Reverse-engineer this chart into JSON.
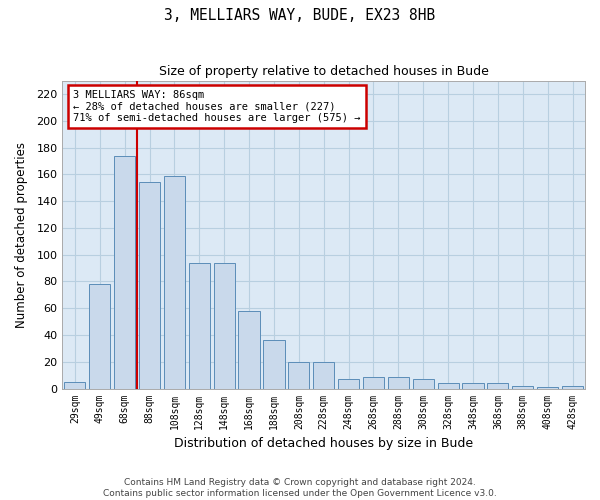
{
  "title": "3, MELLIARS WAY, BUDE, EX23 8HB",
  "subtitle": "Size of property relative to detached houses in Bude",
  "xlabel": "Distribution of detached houses by size in Bude",
  "ylabel": "Number of detached properties",
  "footer_line1": "Contains HM Land Registry data © Crown copyright and database right 2024.",
  "footer_line2": "Contains public sector information licensed under the Open Government Licence v3.0.",
  "bar_color": "#c9d9eb",
  "bar_edge_color": "#5b8db8",
  "grid_color": "#b8cfe0",
  "bg_color": "#dce9f5",
  "annotation_box_color": "#cc0000",
  "vline_color": "#cc0000",
  "categories": [
    "29sqm",
    "49sqm",
    "68sqm",
    "88sqm",
    "108sqm",
    "128sqm",
    "148sqm",
    "168sqm",
    "188sqm",
    "208sqm",
    "228sqm",
    "248sqm",
    "268sqm",
    "288sqm",
    "308sqm",
    "328sqm",
    "348sqm",
    "368sqm",
    "388sqm",
    "408sqm",
    "428sqm"
  ],
  "values": [
    5,
    78,
    174,
    154,
    159,
    94,
    94,
    58,
    36,
    20,
    20,
    7,
    9,
    9,
    7,
    4,
    4,
    4,
    2,
    1,
    2
  ],
  "property_label": "3 MELLIARS WAY: 86sqm",
  "pct_smaller": "28% of detached houses are smaller (227)",
  "pct_larger": "71% of semi-detached houses are larger (575)",
  "vline_position": 2.5,
  "ylim": [
    0,
    230
  ],
  "yticks": [
    0,
    20,
    40,
    60,
    80,
    100,
    120,
    140,
    160,
    180,
    200,
    220
  ],
  "bar_width": 0.85,
  "figsize": [
    6.0,
    5.0
  ],
  "dpi": 100
}
